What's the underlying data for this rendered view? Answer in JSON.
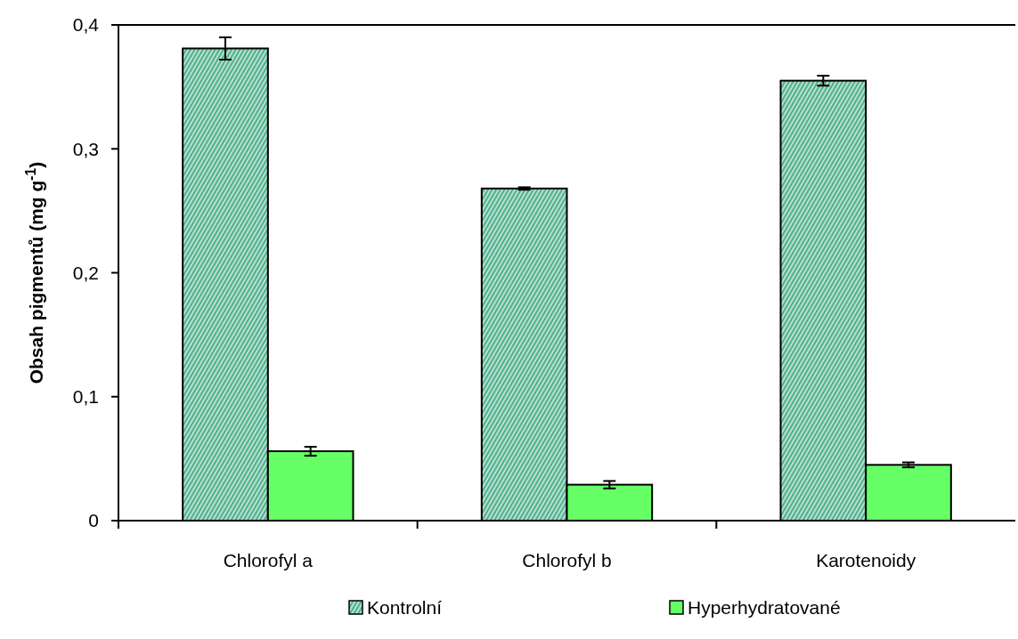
{
  "chart_data": {
    "type": "bar",
    "ylabel": "Obsah pigmentů (mg g$^{-1}$)",
    "categories": [
      "Chlorofyl a",
      "Chlorofyl b",
      "Karotenoidy"
    ],
    "series": [
      {
        "name": "Kontrolní",
        "color": "#4fb08c",
        "values": [
          0.381,
          0.268,
          0.355
        ],
        "errors": [
          0.009,
          0.001,
          0.004
        ]
      },
      {
        "name": "Hyperhydratované",
        "color": "#66ff66",
        "values": [
          0.056,
          0.029,
          0.045
        ],
        "errors": [
          0.0036,
          0.003,
          0.002
        ]
      }
    ],
    "ylim": [
      0,
      0.4
    ],
    "yticks": [
      {
        "value": 0,
        "label": "0"
      },
      {
        "value": 0.1,
        "label": "0,1"
      },
      {
        "value": 0.2,
        "label": "0,2"
      },
      {
        "value": 0.3,
        "label": "0,3"
      },
      {
        "value": 0.4,
        "label": "0,4"
      }
    ],
    "legend": "bottom",
    "grid": false
  }
}
